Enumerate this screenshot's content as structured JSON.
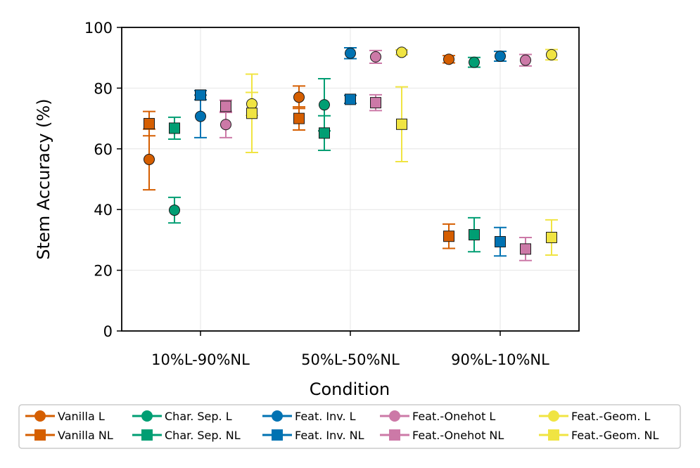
{
  "chart_data": {
    "type": "scatter",
    "title": "",
    "xlabel": "Condition",
    "ylabel": "Stem Accuracy (%)",
    "categories": [
      "10%L-90%NL",
      "50%L-50%NL",
      "90%L-10%NL"
    ],
    "ylim": [
      0,
      100
    ],
    "yticks": [
      0,
      20,
      40,
      60,
      80,
      100
    ],
    "grid": true,
    "legend_position": "bottom",
    "series": [
      {
        "name": "Vanilla L",
        "color": "#d55e00",
        "marker": "circle",
        "offset_index": 0,
        "values": [
          56.5,
          77.0,
          89.5
        ],
        "errors": [
          10.0,
          3.7,
          1.2
        ]
      },
      {
        "name": "Vanilla NL",
        "color": "#d55e00",
        "marker": "square",
        "offset_index": 0,
        "values": [
          68.3,
          70.0,
          31.2
        ],
        "errors": [
          4.0,
          3.8,
          4.0
        ]
      },
      {
        "name": "Char. Sep. L",
        "color": "#009e73",
        "marker": "circle",
        "offset_index": 1,
        "values": [
          39.8,
          74.5,
          88.5
        ],
        "errors": [
          4.2,
          8.6,
          1.6
        ]
      },
      {
        "name": "Char. Sep. NL",
        "color": "#009e73",
        "marker": "square",
        "offset_index": 1,
        "values": [
          66.8,
          65.2,
          31.7
        ],
        "errors": [
          3.6,
          5.7,
          5.6
        ]
      },
      {
        "name": "Feat. Inv. L",
        "color": "#0072b2",
        "marker": "circle",
        "offset_index": 2,
        "values": [
          70.7,
          91.5,
          90.5
        ],
        "errors": [
          7.0,
          1.8,
          1.6
        ]
      },
      {
        "name": "Feat. Inv. NL",
        "color": "#0072b2",
        "marker": "square",
        "offset_index": 2,
        "values": [
          77.7,
          76.3,
          29.4
        ],
        "errors": [
          1.5,
          1.3,
          4.7
        ]
      },
      {
        "name": "Feat.-Onehot L",
        "color": "#cc79a7",
        "marker": "circle",
        "offset_index": 3,
        "values": [
          68.0,
          90.3,
          89.2
        ],
        "errors": [
          4.3,
          2.1,
          1.9
        ]
      },
      {
        "name": "Feat.-Onehot NL",
        "color": "#cc79a7",
        "marker": "square",
        "offset_index": 3,
        "values": [
          74.0,
          75.2,
          27.0
        ],
        "errors": [
          2.0,
          2.6,
          3.8
        ]
      },
      {
        "name": "Feat.-Geom. L",
        "color": "#f0e442",
        "marker": "circle",
        "offset_index": 4,
        "values": [
          74.8,
          91.8,
          91.0
        ],
        "errors": [
          3.8,
          0.8,
          1.7
        ]
      },
      {
        "name": "Feat.-Geom. NL",
        "color": "#f0e442",
        "marker": "square",
        "offset_index": 4,
        "values": [
          71.7,
          68.1,
          30.8
        ],
        "errors": [
          12.9,
          12.3,
          5.8
        ]
      }
    ]
  }
}
